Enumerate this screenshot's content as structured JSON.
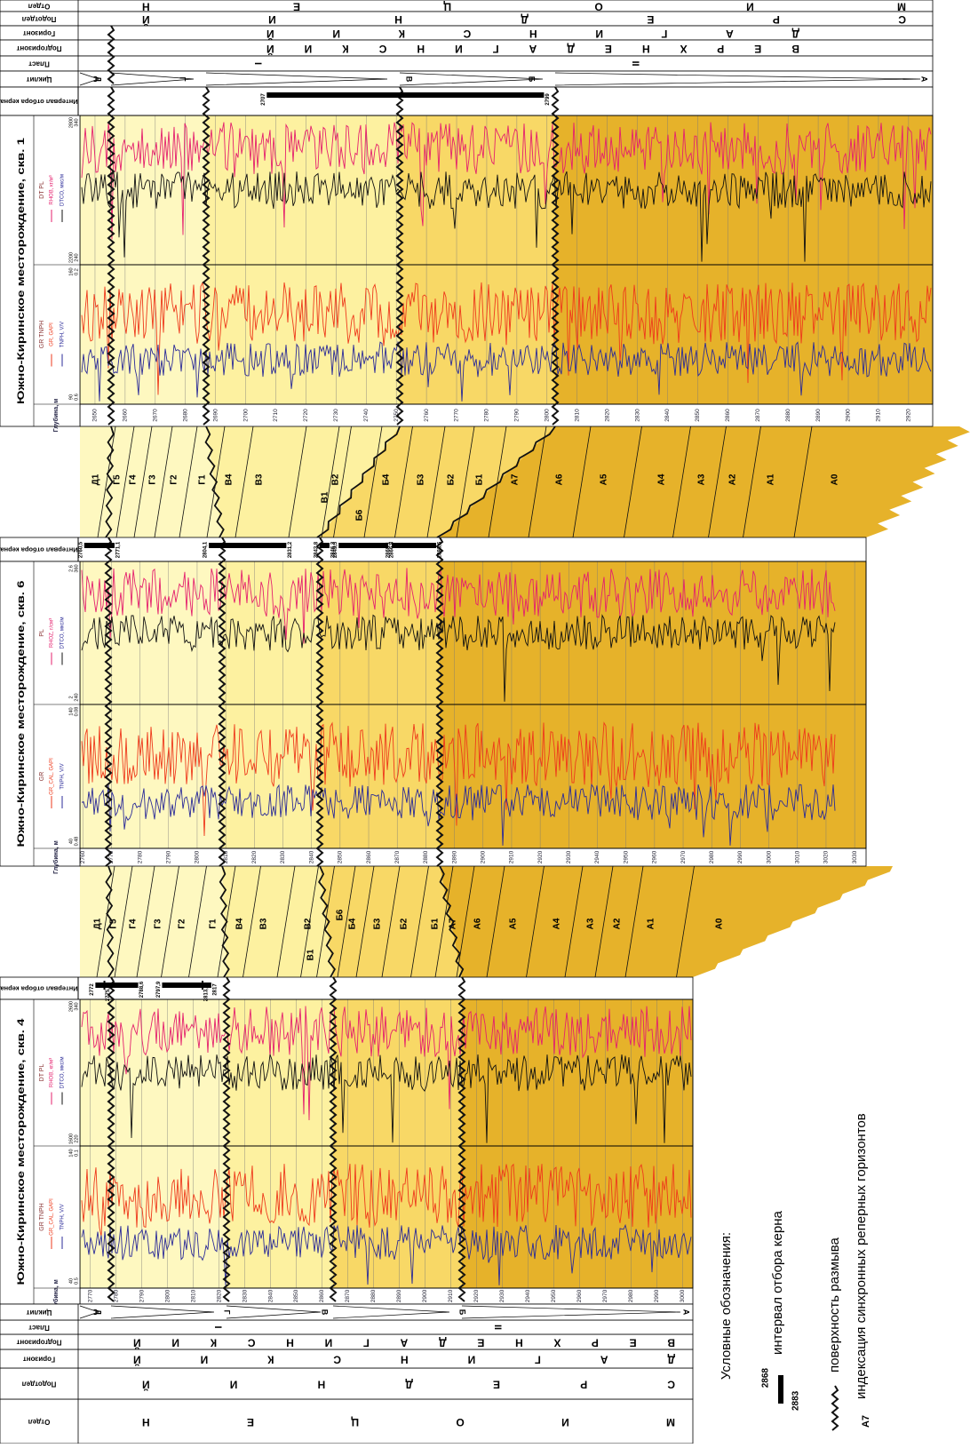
{
  "headers": {
    "department": "Отдел",
    "subdepartment": "Подотдел",
    "horizon": "Горизонт",
    "subhorizon": "Подгоризонт",
    "layer": "Пласт",
    "cyclite": "Циклит",
    "core_interval": "Интервал отбора керна",
    "depth": "Глубина, м"
  },
  "stratigraphy": {
    "department": "МИОЦЕН",
    "subdepartment": "СРЕДНИЙ",
    "horizon": "ДАГИНСКИЙ",
    "subhorizon": "ВЕРХНЕДАГИНСКИЙ",
    "layers": [
      "I",
      "II"
    ],
    "cyclites": [
      "Д",
      "Г",
      "В",
      "Б",
      "А"
    ]
  },
  "wells": [
    {
      "title": "Южно-Киринское месторождение, скв. 1",
      "tracks": [
        {
          "name": "GR TNPH",
          "curves": [
            "GR, GAPI",
            "TNPH, V/V"
          ],
          "scale": [
            90,
            160,
            0.6,
            0.2
          ]
        },
        {
          "name": "DT PL",
          "curves": [
            "RHOB, кг/м³",
            "DTCO, мкс/м"
          ],
          "scale": [
            2200,
            2800,
            240,
            340
          ]
        }
      ],
      "depth_lim": [
        2645,
        2928
      ],
      "depth_ticks": [
        2650,
        2660,
        2670,
        2680,
        2690,
        2700,
        2710,
        2720,
        2730,
        2740,
        2750,
        2760,
        2770,
        2780,
        2790,
        2800,
        2810,
        2820,
        2830,
        2840,
        2850,
        2860,
        2870,
        2880,
        2890,
        2900,
        2910,
        2920
      ],
      "core_intervals": [
        {
          "top": 2707,
          "bottom": 2799
        }
      ],
      "core_marks": []
    },
    {
      "title": "Южно-Киринское месторождение, скв. 6",
      "tracks": [
        {
          "name": "GR",
          "curves": [
            "GR_CAL, GAPI",
            "TNPH, V/V"
          ],
          "scale": [
            40,
            140,
            0.48,
            0.08
          ]
        },
        {
          "name": "PL",
          "curves": [
            "RHOZ, г/см³",
            "DTCO, мкс/м"
          ],
          "scale": [
            2,
            2.6,
            240,
            360
          ]
        }
      ],
      "depth_lim": [
        2759,
        3034
      ],
      "depth_ticks": [
        2760,
        2770,
        2780,
        2790,
        2800,
        2810,
        2820,
        2830,
        2840,
        2850,
        2860,
        2870,
        2880,
        2890,
        2900,
        2910,
        2920,
        2930,
        2940,
        2950,
        2960,
        2970,
        2980,
        2990,
        3000,
        3010,
        3020,
        3030
      ],
      "core_intervals": [
        {
          "top": {
            "value": 2760.5,
            "label": "2760,5"
          },
          "bottom": {
            "value": 2771.1,
            "label": "2771,1"
          }
        },
        {
          "top": {
            "value": 2804.1,
            "label": "2804,1"
          },
          "bottom": {
            "value": 2831.2,
            "label": "2831,2"
          }
        },
        {
          "top": {
            "value": 2842.8,
            "label": "2842,8"
          },
          "bottom": {
            "value": 2846.3,
            "label": "2846,3"
          }
        },
        {
          "top": {
            "value": 2849.5,
            "label": "2849,5"
          },
          "bottom": {
            "value": 2866.8,
            "label": "2866,8"
          }
        },
        {
          "top": {
            "value": 2868.1,
            "label": "2868,1"
          },
          "bottom": {
            "value": 2883.6,
            "label": "2883,6"
          }
        }
      ],
      "core_marks": []
    },
    {
      "title": "Южно-Киринское месторождение, скв. 4",
      "tracks": [
        {
          "name": "GR TNPH",
          "curves": [
            "GR_CAL, GAPI",
            "TNPH, V/V"
          ],
          "scale": [
            40,
            140,
            0.5,
            0.1
          ]
        },
        {
          "name": "DT PL",
          "curves": [
            "RHOB, кг/м³",
            "DTCO, мкс/м"
          ],
          "scale": [
            1600,
            2600,
            220,
            340
          ]
        }
      ],
      "depth_lim": [
        2766,
        3004
      ],
      "depth_ticks": [
        2770,
        2780,
        2790,
        2800,
        2810,
        2820,
        2830,
        2840,
        2850,
        2860,
        2870,
        2880,
        2890,
        2900,
        2910,
        2920,
        2930,
        2940,
        2950,
        2960,
        2970,
        2980,
        2990,
        3000
      ],
      "core_intervals": [
        {
          "top": 2772,
          "bottom": {
            "value": 2788.6,
            "label": "2788,6"
          }
        },
        {
          "top": {
            "value": 2797.9,
            "label": "2797,9"
          },
          "bottom": 2817
        }
      ],
      "core_marks": [
        {
          "value": 2775.5,
          "label": "2775,5"
        },
        {
          "value": 2813.6,
          "label": "2813,6"
        }
      ]
    }
  ],
  "correlations": [
    {
      "labels": [
        "Д1",
        "Г5",
        "Г4",
        "Г3",
        "Г2",
        "Г1",
        "В4",
        "В3",
        "В2",
        "В1",
        "Б6",
        "Б4",
        "Б3",
        "Б2",
        "Б1",
        "А7",
        "А6",
        "А5",
        "А4",
        "А3",
        "А2",
        "А1",
        "А0"
      ]
    },
    {
      "labels": [
        "Д1",
        "Г5",
        "Г4",
        "Г3",
        "Г2",
        "Г1",
        "В4",
        "В3",
        "В2",
        "В1",
        "Б6",
        "Б4",
        "Б3",
        "Б2",
        "Б1",
        "А7",
        "А6",
        "А5",
        "А4",
        "А3",
        "А2",
        "А1",
        "А0"
      ]
    }
  ],
  "legend": {
    "title": "Условные обозначения:",
    "core": {
      "top": 2868,
      "bottom": 2883,
      "text": "интервал отбора керна"
    },
    "erosion": "поверхность размыва",
    "marker": {
      "label": "А7",
      "text": "индексация синхронных реперных горизонтов"
    }
  }
}
